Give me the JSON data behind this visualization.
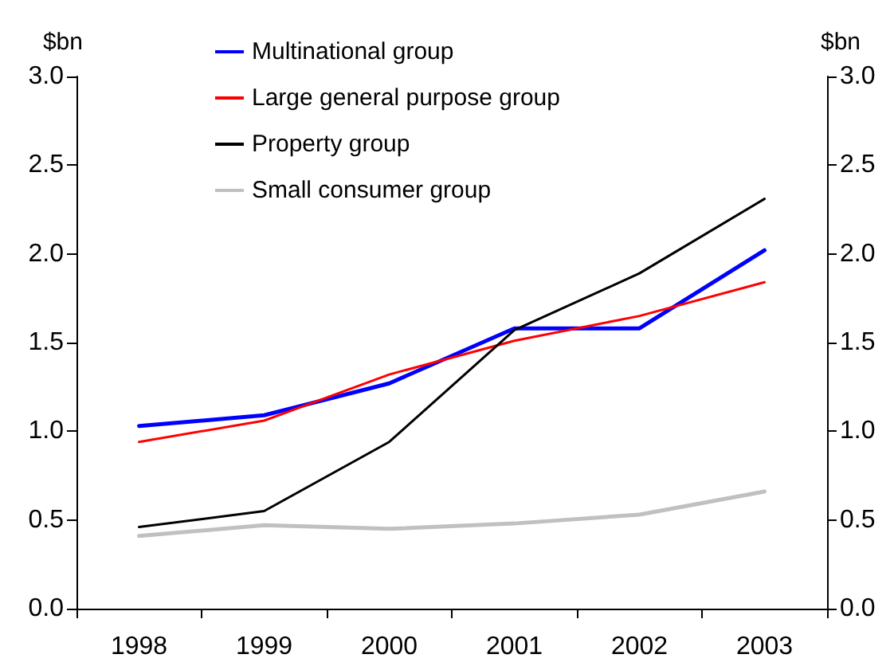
{
  "chart_data": {
    "type": "line",
    "ylabel": "$bn",
    "y2label": "$bn",
    "categories": [
      "1998",
      "1999",
      "2000",
      "2001",
      "2002",
      "2003"
    ],
    "series": [
      {
        "name": "Multinational group",
        "color": "#0000ff",
        "values": [
          1.03,
          1.09,
          1.27,
          1.58,
          1.58,
          2.02
        ]
      },
      {
        "name": "Large general purpose group",
        "color": "#ff0000",
        "values": [
          0.94,
          1.06,
          1.32,
          1.51,
          1.65,
          1.84
        ]
      },
      {
        "name": "Property group",
        "color": "#000000",
        "values": [
          0.46,
          0.55,
          0.94,
          1.57,
          1.89,
          2.31
        ]
      },
      {
        "name": "Small consumer group",
        "color": "#c0c0c0",
        "values": [
          0.41,
          0.47,
          0.45,
          0.48,
          0.53,
          0.66
        ]
      }
    ],
    "ylim": [
      0,
      3
    ],
    "yticks": [
      {
        "value": 0,
        "label": "0.0"
      },
      0.5,
      {
        "value": 1,
        "label": "1.0"
      },
      1.5,
      {
        "value": 2,
        "label": "2.0"
      },
      2.5,
      {
        "value": 3,
        "label": "3.0"
      }
    ],
    "y2lim": [
      0,
      3
    ],
    "y2ticks": [
      {
        "value": 0,
        "label": "0.0"
      },
      0.5,
      {
        "value": 1,
        "label": "1.0"
      },
      1.5,
      {
        "value": 2,
        "label": "2.0"
      },
      2.5,
      {
        "value": 3,
        "label": "3.0"
      }
    ],
    "grid": false,
    "legend": "top left",
    "marker": "none",
    "line_style": "solid"
  }
}
